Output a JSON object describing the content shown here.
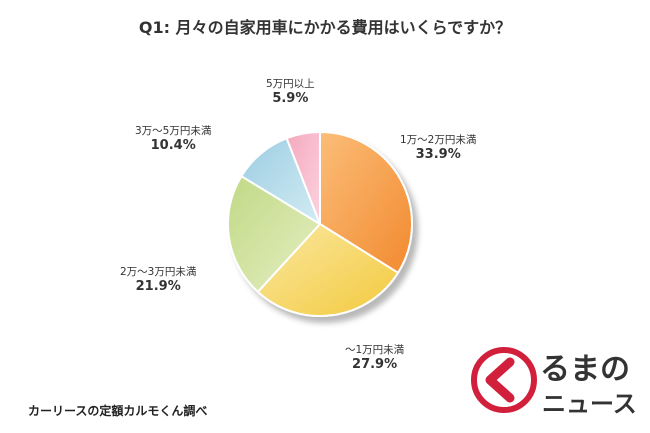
{
  "chart_data": {
    "type": "pie",
    "title": "Q1: 月々の自家用車にかかる費用はいくらですか？",
    "categories": [
      "1万〜2万円未満",
      "〜1万円未満",
      "2万〜3万円未満",
      "3万〜5万円未満",
      "5万円以上"
    ],
    "values": [
      33.9,
      27.9,
      21.9,
      10.4,
      5.9
    ],
    "value_labels": [
      "33.9%",
      "27.9%",
      "21.9%",
      "10.4%",
      "5.9%"
    ],
    "colors": [
      "#f7a04a",
      "#f6d55e",
      "#cfe29a",
      "#b5dcea",
      "#f7b9cb"
    ],
    "start_angle_deg": 0,
    "direction": "clockwise"
  },
  "source": "カーリースの定額カルモくん調べ",
  "logo": {
    "line1": "るまの",
    "line2": "ニュース",
    "accent_color": "#d21f3c"
  }
}
